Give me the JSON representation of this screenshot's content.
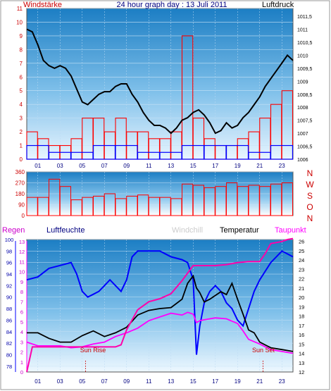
{
  "chart_data": [
    {
      "type": "bar",
      "title": "24 hour graph day : 13 Juli 2011",
      "left_label": "Windstärke",
      "right_label": "Luftdruck",
      "x_ticks": [
        "01",
        "03",
        "05",
        "07",
        "09",
        "11",
        "13",
        "15",
        "17",
        "19",
        "21",
        "23"
      ],
      "y_left_ticks": [
        "0",
        "1",
        "2",
        "3",
        "4",
        "5",
        "6",
        "7",
        "8",
        "9",
        "10",
        "11"
      ],
      "y_right_ticks": [
        "1006",
        "1006,5",
        "1007",
        "1007,5",
        "1008",
        "1008,5",
        "1009",
        "1009,5",
        "1010",
        "1010,5",
        "1011",
        "1011,5"
      ],
      "ylim_left": [
        0,
        11
      ],
      "ylim_right": [
        1006,
        1011.8
      ],
      "xlim": [
        0,
        24
      ],
      "series": [
        {
          "role": "wind",
          "color": "#ff0000",
          "x": [
            0,
            1,
            2,
            3,
            4,
            5,
            6,
            7,
            8,
            9,
            10,
            11,
            12,
            13,
            14,
            15,
            16,
            17,
            18,
            19,
            20,
            21,
            22,
            23,
            24
          ],
          "y": [
            2,
            1.5,
            1,
            1,
            1.5,
            3,
            3,
            2,
            3,
            2,
            2,
            1.5,
            1.5,
            2,
            9,
            3,
            1.5,
            1,
            1,
            1.5,
            2,
            3,
            4,
            5,
            3
          ]
        },
        {
          "role": "gust",
          "color": "#0000ff",
          "x": [
            0,
            2,
            4,
            6,
            8,
            10,
            12,
            14,
            16,
            18,
            20,
            22,
            24
          ],
          "y": [
            1,
            0.5,
            0.5,
            1,
            1,
            0.5,
            0.5,
            1,
            1,
            1,
            0.5,
            1,
            1
          ]
        },
        {
          "role": "pressure",
          "color": "#000000",
          "x": [
            0,
            0.5,
            1,
            1.5,
            2,
            2.5,
            3,
            3.5,
            4,
            4.5,
            5,
            5.5,
            6,
            6.5,
            7,
            7.5,
            8,
            8.5,
            9,
            9.5,
            10,
            10.5,
            11,
            11.5,
            12,
            12.5,
            13,
            13.5,
            14,
            14.5,
            15,
            15.5,
            16,
            16.5,
            17,
            17.5,
            18,
            18.5,
            19,
            19.5,
            20,
            20.5,
            21,
            21.5,
            22,
            22.5,
            23,
            23.5,
            24
          ],
          "y": [
            1011,
            1010.9,
            1010.4,
            1009.8,
            1009.6,
            1009.5,
            1009.6,
            1009.5,
            1009.2,
            1008.7,
            1008.2,
            1008.1,
            1008.3,
            1008.5,
            1008.6,
            1008.6,
            1008.8,
            1008.9,
            1008.9,
            1008.5,
            1008.2,
            1007.8,
            1007.5,
            1007.3,
            1007.3,
            1007.2,
            1007,
            1007.2,
            1007.5,
            1007.6,
            1007.8,
            1007.9,
            1007.7,
            1007.4,
            1007,
            1007.1,
            1007.4,
            1007.2,
            1007.3,
            1007.6,
            1007.8,
            1008.1,
            1008.4,
            1008.8,
            1009.1,
            1009.4,
            1009.7,
            1010,
            1009.8
          ]
        }
      ]
    },
    {
      "type": "bar",
      "y_ticks": [
        "0",
        "90",
        "180",
        "270",
        "360"
      ],
      "ylim": [
        0,
        360
      ],
      "compass_labels": [
        "N",
        "W",
        "S",
        "O",
        "N"
      ],
      "xlim": [
        0,
        24
      ],
      "series": [
        {
          "role": "direction",
          "color": "#ff0000",
          "x": [
            0,
            1,
            2,
            3,
            4,
            5,
            6,
            7,
            8,
            9,
            10,
            11,
            12,
            13,
            14,
            15,
            16,
            17,
            18,
            19,
            20,
            21,
            22,
            23,
            24
          ],
          "y": [
            150,
            150,
            300,
            240,
            130,
            150,
            160,
            180,
            140,
            160,
            170,
            150,
            150,
            140,
            260,
            250,
            230,
            240,
            270,
            240,
            250,
            240,
            260,
            270,
            250
          ]
        }
      ]
    },
    {
      "type": "line",
      "labels": {
        "regen": "Regen",
        "feuchte": "Luftfeuchte",
        "windchill": "Windchill",
        "temperatur": "Temperatur",
        "taupunkt": "Taupunkt"
      },
      "annotations": [
        "Sun Rise",
        "Sun Set"
      ],
      "sun_rise_x": 5.3,
      "sun_set_x": 21.3,
      "x_ticks": [
        "01",
        "03",
        "05",
        "07",
        "09",
        "11",
        "13",
        "15",
        "17",
        "19",
        "21",
        "23"
      ],
      "y_humidity_ticks": [
        "78",
        "80",
        "82",
        "84",
        "86",
        "88",
        "90",
        "92",
        "94",
        "96",
        "98",
        "100"
      ],
      "y_rain_ticks": [
        "0",
        "1",
        "2",
        "3",
        "4",
        "5",
        "6",
        "7",
        "8",
        "9",
        "10",
        "11",
        "12",
        "13"
      ],
      "y_temp_ticks": [
        "12",
        "13",
        "14",
        "15",
        "16",
        "17",
        "18",
        "19",
        "20",
        "21",
        "22",
        "23",
        "24",
        "25",
        "26"
      ],
      "ylim_humidity": [
        77,
        100
      ],
      "ylim_temp": [
        12,
        26.2
      ],
      "xlim": [
        0,
        24
      ],
      "series": [
        {
          "role": "humidity",
          "color": "#0000ff",
          "x": [
            0,
            1,
            2,
            3,
            4,
            4.5,
            5,
            5.5,
            6,
            6.5,
            7,
            7.5,
            8,
            8.5,
            9,
            9.5,
            10,
            11,
            12,
            13,
            14,
            14.5,
            15,
            15.3,
            15.6,
            16,
            16.5,
            17,
            17.5,
            18,
            18.5,
            19,
            19.5,
            20,
            20.5,
            21,
            22,
            23,
            24
          ],
          "y": [
            93,
            93.5,
            95,
            95.5,
            96,
            94,
            91,
            90,
            90.5,
            91,
            92,
            93,
            92,
            91,
            93,
            97,
            98,
            98,
            98,
            97,
            96.5,
            96,
            93,
            80,
            85,
            89,
            91,
            92,
            91,
            89,
            88,
            86,
            85,
            88,
            91,
            93,
            96,
            98,
            97
          ]
        },
        {
          "role": "temperature",
          "color": "#000000",
          "x": [
            0,
            1,
            2,
            3,
            4,
            5,
            6,
            7,
            8,
            9,
            10,
            11,
            12,
            13,
            14,
            14.5,
            15,
            15.3,
            15.6,
            16,
            16.5,
            17,
            17.5,
            18,
            18.5,
            19,
            19.5,
            20,
            20.5,
            21,
            22,
            23,
            24
          ],
          "y": [
            16.2,
            16.2,
            15.6,
            15.2,
            15.2,
            15.9,
            16.4,
            15.8,
            16.2,
            16.8,
            18.1,
            18.6,
            18.8,
            18.9,
            19.8,
            21.5,
            22.3,
            21,
            20.5,
            19.5,
            19.8,
            20.2,
            20.6,
            20.3,
            21.5,
            19.8,
            18.2,
            16.5,
            16.2,
            15.2,
            14.6,
            14.4,
            14.2
          ]
        },
        {
          "role": "dewpoint",
          "color": "#ff00ff",
          "x": [
            0,
            1,
            2,
            3,
            4,
            5,
            6,
            7,
            8,
            9,
            10,
            11,
            12,
            13,
            14,
            14.5,
            15,
            15.3,
            15.6,
            16,
            17,
            18,
            19,
            19.5,
            20,
            21,
            22,
            23,
            24
          ],
          "y": [
            15.2,
            14.8,
            14.8,
            14.8,
            14.6,
            14.7,
            15,
            15.2,
            15.8,
            16.2,
            16.7,
            17.5,
            17.9,
            18.3,
            18.1,
            18.4,
            18.2,
            17.3,
            17.5,
            17.6,
            17.8,
            17.7,
            17.2,
            16.4,
            15.5,
            15,
            14.4,
            14.2,
            14
          ]
        },
        {
          "role": "rain",
          "color": "#ff00aa",
          "x": [
            0,
            0.5,
            1,
            2,
            3,
            4,
            5,
            6,
            7,
            8,
            8.5,
            9,
            10,
            11,
            12,
            13,
            14,
            15,
            16,
            17,
            18,
            19,
            20,
            21,
            21.5,
            22,
            22.5,
            23,
            23.5,
            24
          ],
          "y": [
            0,
            2.5,
            2.5,
            2.5,
            2.5,
            2.5,
            2.5,
            2.5,
            2.5,
            2.5,
            2.7,
            4.2,
            6.2,
            7,
            7.3,
            7.8,
            9.1,
            10.6,
            10.6,
            10.6,
            10.7,
            10.9,
            11,
            11,
            11.8,
            12.8,
            12.9,
            13,
            13.2,
            13.3
          ]
        }
      ]
    }
  ]
}
